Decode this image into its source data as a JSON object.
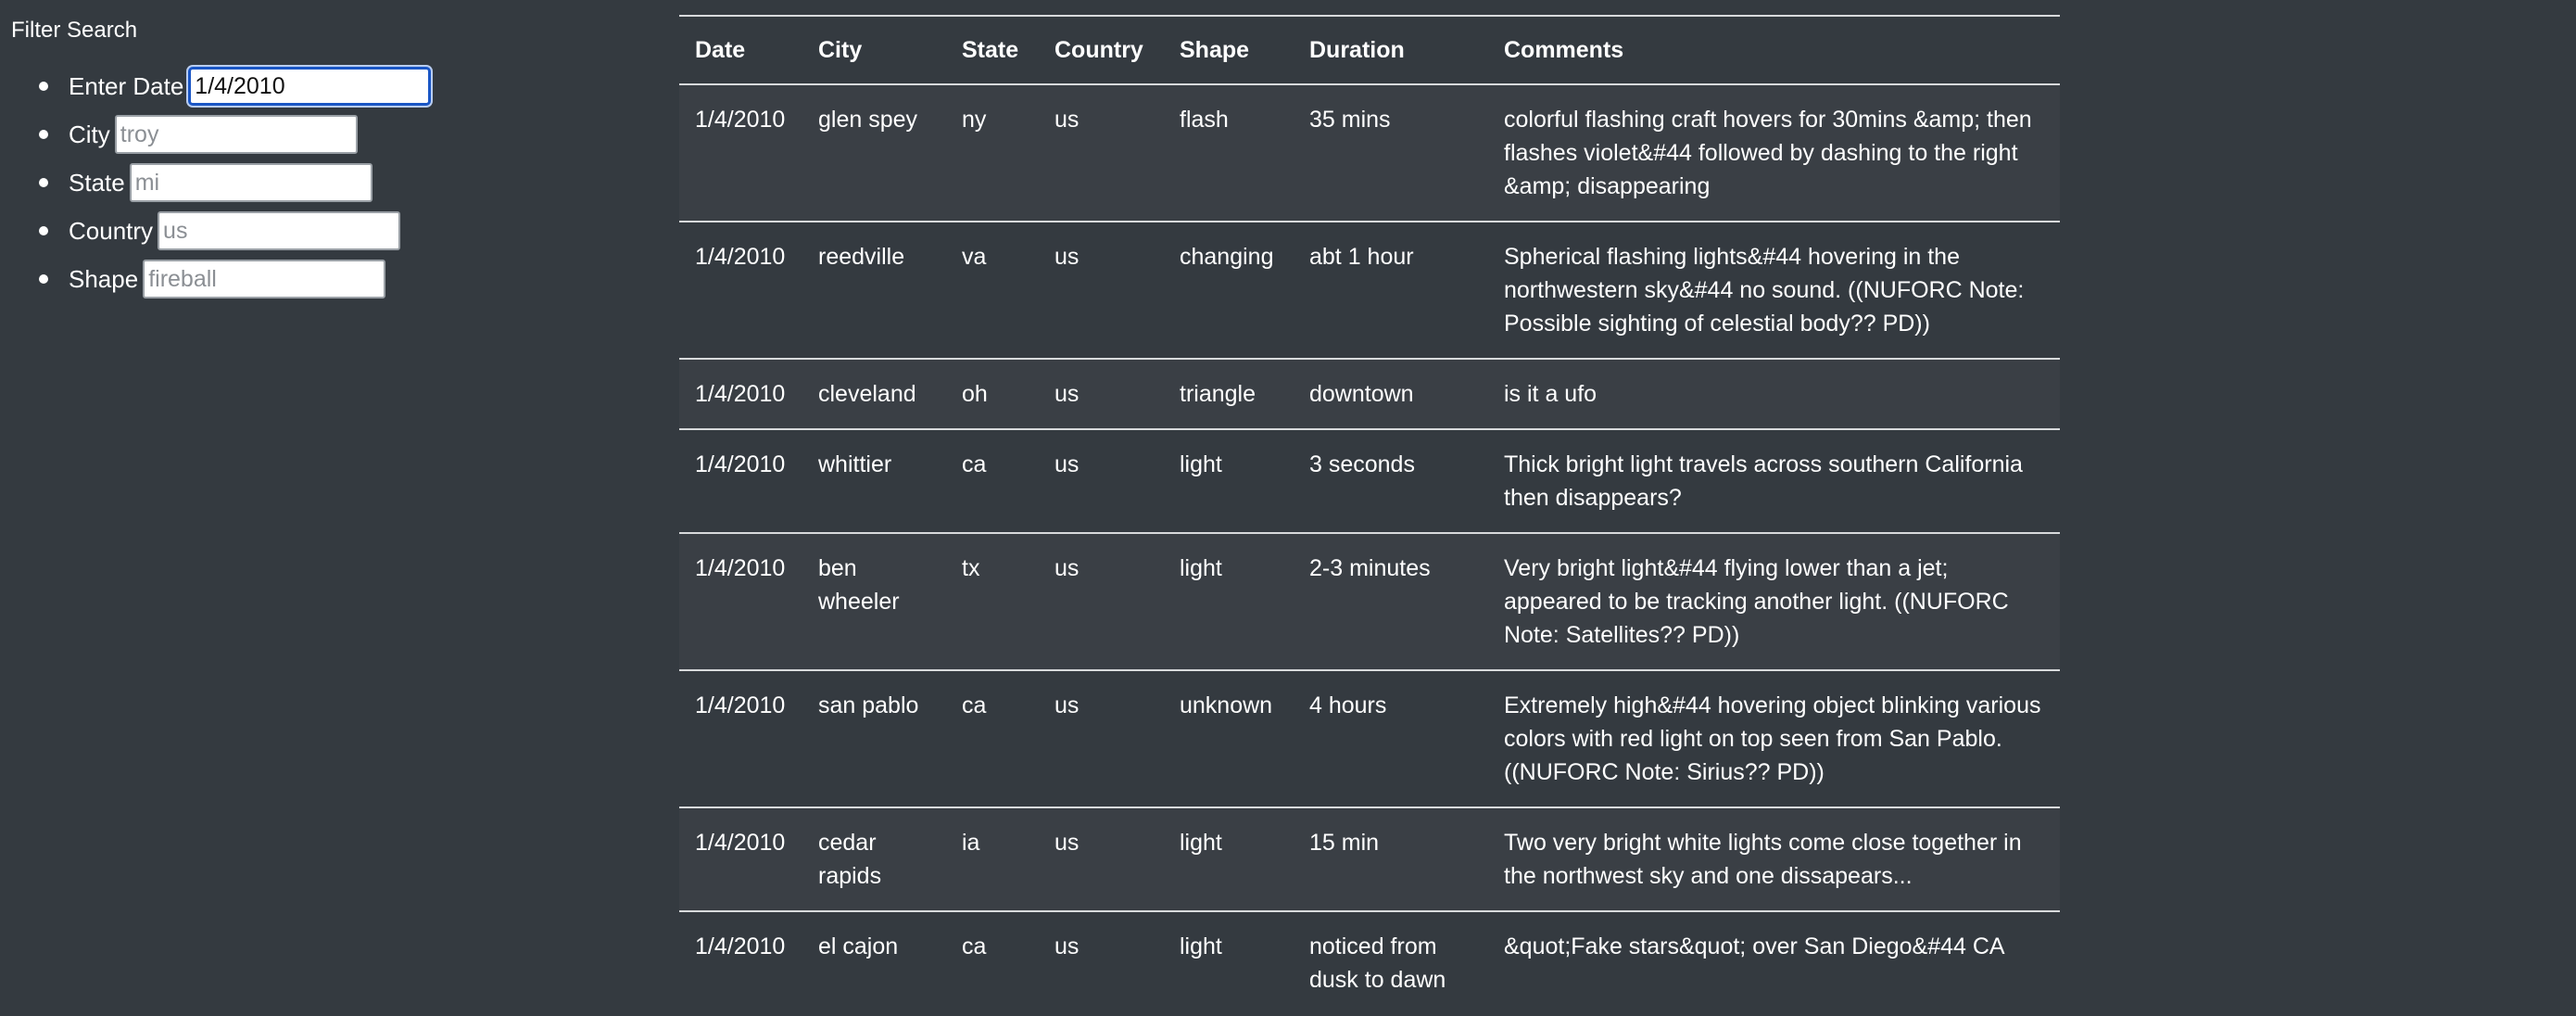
{
  "filter": {
    "title": "Filter Search",
    "fields": [
      {
        "label": "Enter Date",
        "value": "1/4/2010",
        "placeholder": ""
      },
      {
        "label": "City",
        "value": "",
        "placeholder": "troy"
      },
      {
        "label": "State",
        "value": "",
        "placeholder": "mi"
      },
      {
        "label": "Country",
        "value": "",
        "placeholder": "us"
      },
      {
        "label": "Shape",
        "value": "",
        "placeholder": "fireball"
      }
    ]
  },
  "table": {
    "headers": [
      "Date",
      "City",
      "State",
      "Country",
      "Shape",
      "Duration",
      "Comments"
    ],
    "rows": [
      [
        "1/4/2010",
        "glen spey",
        "ny",
        "us",
        "flash",
        "35 mins",
        "colorful flashing craft hovers for 30mins &amp; then flashes violet&#44 followed by dashing to the right &amp; disappearing"
      ],
      [
        "1/4/2010",
        "reedville",
        "va",
        "us",
        "changing",
        "abt 1 hour",
        "Spherical flashing lights&#44 hovering in the northwestern sky&#44 no sound. ((NUFORC Note: Possible sighting of celestial body?? PD))"
      ],
      [
        "1/4/2010",
        "cleveland",
        "oh",
        "us",
        "triangle",
        "downtown",
        "is it a ufo"
      ],
      [
        "1/4/2010",
        "whittier",
        "ca",
        "us",
        "light",
        "3 seconds",
        "Thick bright light travels across southern California then disappears?"
      ],
      [
        "1/4/2010",
        "ben wheeler",
        "tx",
        "us",
        "light",
        "2-3 minutes",
        "Very bright light&#44 flying lower than a jet; appeared to be tracking another light. ((NUFORC Note: Satellites?? PD))"
      ],
      [
        "1/4/2010",
        "san pablo",
        "ca",
        "us",
        "unknown",
        "4 hours",
        "Extremely high&#44 hovering object blinking various colors with red light on top seen from San Pablo. ((NUFORC Note: Sirius?? PD))"
      ],
      [
        "1/4/2010",
        "cedar rapids",
        "ia",
        "us",
        "light",
        "15 min",
        "Two very bright white lights come close together in the northwest sky and one dissapears..."
      ],
      [
        "1/4/2010",
        "el cajon",
        "ca",
        "us",
        "light",
        "noticed from dusk to dawn",
        "&quot;Fake stars&quot; over San Diego&#44 CA"
      ]
    ]
  }
}
